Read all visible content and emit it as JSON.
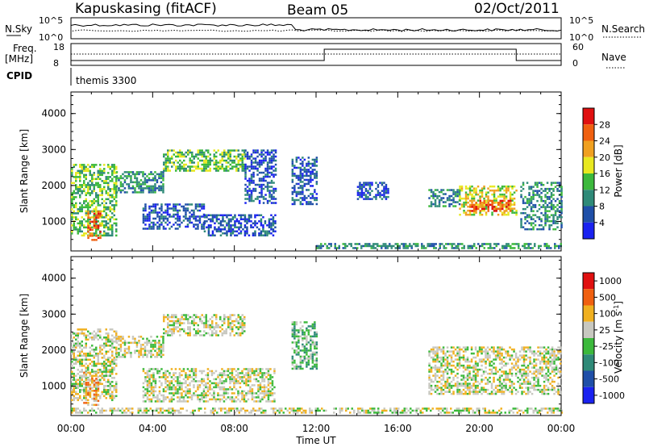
{
  "header": {
    "station": "Kapuskasing (fitACF)",
    "beam": "Beam 05",
    "date": "02/Oct/2011"
  },
  "noise_panel": {
    "left_label": "N.Sky",
    "right_label": "N.Search",
    "left_ticks": [
      "10^5",
      "10^0"
    ],
    "right_ticks": [
      "10^5",
      "10^0"
    ]
  },
  "freq_panel": {
    "left_label_1": "Freq.",
    "left_label_2": "[MHz]",
    "right_label": "Nave",
    "left_ticks": [
      "18",
      "8"
    ],
    "right_ticks": [
      "60",
      "0"
    ]
  },
  "cpid": {
    "label": "CPID",
    "program": "themis 3300"
  },
  "chart_data": [
    {
      "type": "heatmap",
      "name": "Power",
      "ylabel": "Slant Range [km]",
      "xlabel": "Time UT",
      "xlim": [
        "00:00",
        "24:00"
      ],
      "ylim": [
        180,
        4600
      ],
      "x_ticks": [
        "00:00",
        "04:00",
        "08:00",
        "12:00",
        "16:00",
        "20:00",
        "00:00"
      ],
      "y_ticks": [
        1000,
        2000,
        3000,
        4000
      ],
      "colorbar": {
        "label": "Power [dB]",
        "ticks": [
          "4",
          "8",
          "12",
          "16",
          "20",
          "24",
          "28"
        ],
        "colors": [
          "#1a22f0",
          "#1f4fa8",
          "#2f8a78",
          "#3cb93c",
          "#e8e820",
          "#f0a020",
          "#f06010",
          "#e01010"
        ]
      },
      "regions": [
        {
          "t": [
            0.0,
            2.2
          ],
          "r": [
            600,
            2600
          ],
          "level": 3
        },
        {
          "t": [
            0.8,
            1.4
          ],
          "r": [
            500,
            1300
          ],
          "level": 6
        },
        {
          "t": [
            2.2,
            4.5
          ],
          "r": [
            1800,
            2400
          ],
          "level": 2
        },
        {
          "t": [
            4.5,
            8.5
          ],
          "r": [
            2400,
            3000
          ],
          "level": 3
        },
        {
          "t": [
            3.5,
            6.5
          ],
          "r": [
            800,
            1500
          ],
          "level": 1
        },
        {
          "t": [
            6.5,
            10.0
          ],
          "r": [
            600,
            1200
          ],
          "level": 1
        },
        {
          "t": [
            8.5,
            10.0
          ],
          "r": [
            1500,
            3000
          ],
          "level": 1
        },
        {
          "t": [
            10.8,
            12.0
          ],
          "r": [
            1500,
            2800
          ],
          "level": 1
        },
        {
          "t": [
            14.0,
            15.5
          ],
          "r": [
            1600,
            2100
          ],
          "level": 1
        },
        {
          "t": [
            17.5,
            19.0
          ],
          "r": [
            1400,
            1900
          ],
          "level": 2
        },
        {
          "t": [
            19.0,
            21.8
          ],
          "r": [
            1200,
            2000
          ],
          "level": 4
        },
        {
          "t": [
            19.5,
            21.5
          ],
          "r": [
            1300,
            1600
          ],
          "level": 6
        },
        {
          "t": [
            22.0,
            24.0
          ],
          "r": [
            800,
            2100
          ],
          "level": 2
        },
        {
          "t": [
            12.0,
            24.0
          ],
          "r": [
            250,
            400
          ],
          "level": 2
        }
      ]
    },
    {
      "type": "heatmap",
      "name": "Velocity",
      "ylabel": "Slant Range [km]",
      "xlabel": "Time UT",
      "xlim": [
        "00:00",
        "24:00"
      ],
      "ylim": [
        180,
        4600
      ],
      "x_ticks": [
        "00:00",
        "04:00",
        "08:00",
        "12:00",
        "16:00",
        "20:00",
        "00:00"
      ],
      "y_ticks": [
        1000,
        2000,
        3000,
        4000
      ],
      "colorbar": {
        "label": "Velocity [m s^-1]",
        "ticks": [
          "1000",
          "500",
          "100",
          "25",
          "-25",
          "-100",
          "-500",
          "-1000"
        ],
        "colors": [
          "#1a22f0",
          "#1f4fa8",
          "#2f8a78",
          "#3cb93c",
          "#c8c8c0",
          "#f0b020",
          "#f06010",
          "#e01010"
        ]
      },
      "regions": [
        {
          "t": [
            0.0,
            2.2
          ],
          "r": [
            600,
            2600
          ],
          "level": 4
        },
        {
          "t": [
            0.6,
            1.3
          ],
          "r": [
            500,
            1400
          ],
          "level": 5
        },
        {
          "t": [
            2.2,
            4.5
          ],
          "r": [
            1800,
            2400
          ],
          "level": 4
        },
        {
          "t": [
            4.5,
            8.5
          ],
          "r": [
            2400,
            3000
          ],
          "level": 4
        },
        {
          "t": [
            3.5,
            10.0
          ],
          "r": [
            600,
            1500
          ],
          "level": 4
        },
        {
          "t": [
            10.8,
            12.0
          ],
          "r": [
            1500,
            2800
          ],
          "level": 3
        },
        {
          "t": [
            17.5,
            24.0
          ],
          "r": [
            800,
            2100
          ],
          "level": 4
        },
        {
          "t": [
            0.0,
            24.0
          ],
          "r": [
            250,
            400
          ],
          "level": 4
        }
      ]
    }
  ]
}
